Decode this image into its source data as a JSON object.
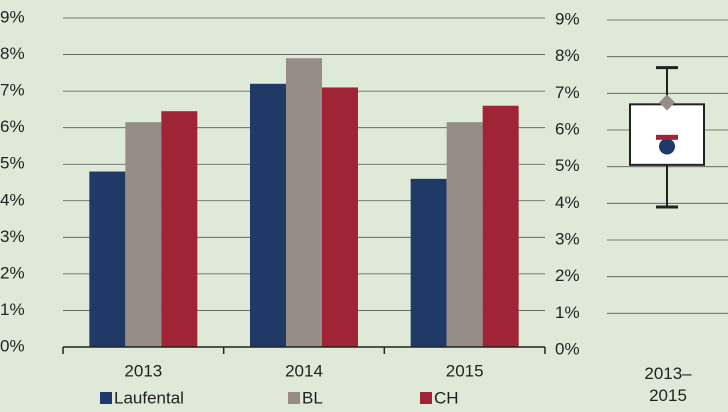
{
  "chart_data": [
    {
      "type": "bar",
      "categories": [
        "2013",
        "2014",
        "2015"
      ],
      "series": [
        {
          "name": "Laufental",
          "color": "#1f3a66",
          "values": [
            4.8,
            7.2,
            4.6
          ]
        },
        {
          "name": "BL",
          "color": "#958d86",
          "values": [
            6.15,
            7.9,
            6.15
          ]
        },
        {
          "name": "CH",
          "color": "#9e2436",
          "values": [
            6.45,
            7.1,
            6.6
          ]
        }
      ],
      "ylim": [
        0,
        9
      ],
      "yticks": [
        {
          "value": 0,
          "label": "0%"
        },
        {
          "value": 1,
          "label": "1%"
        },
        {
          "value": 2,
          "label": "2%"
        },
        {
          "value": 3,
          "label": "3%"
        },
        {
          "value": 4,
          "label": "4%"
        },
        {
          "value": 5,
          "label": "5%"
        },
        {
          "value": 6,
          "label": "6%"
        },
        {
          "value": 7,
          "label": "7%"
        },
        {
          "value": 8,
          "label": "8%"
        },
        {
          "value": 9,
          "label": "9%"
        }
      ],
      "grid": true,
      "legend": "bottom"
    },
    {
      "type": "box",
      "categories": [
        "2013–2015"
      ],
      "box": {
        "min": 3.9,
        "q1": 5.05,
        "q3": 6.7,
        "max": 7.7
      },
      "markers": [
        {
          "shape": "circle",
          "color": "#1f3a66",
          "value": 5.55
        },
        {
          "shape": "diamond",
          "color": "#958d86",
          "value": 6.75
        },
        {
          "shape": "dash",
          "color": "#9e2436",
          "value": 5.8
        }
      ],
      "ylim": [
        0,
        9
      ],
      "yticks": [
        {
          "value": 0,
          "label": "0%"
        },
        {
          "value": 1,
          "label": "1%"
        },
        {
          "value": 2,
          "label": "2%"
        },
        {
          "value": 3,
          "label": "3%"
        },
        {
          "value": 4,
          "label": "4%"
        },
        {
          "value": 5,
          "label": "5%"
        },
        {
          "value": 6,
          "label": "6%"
        },
        {
          "value": 7,
          "label": "7%"
        },
        {
          "value": 8,
          "label": "8%"
        },
        {
          "value": 9,
          "label": "9%"
        }
      ],
      "grid": true
    }
  ]
}
